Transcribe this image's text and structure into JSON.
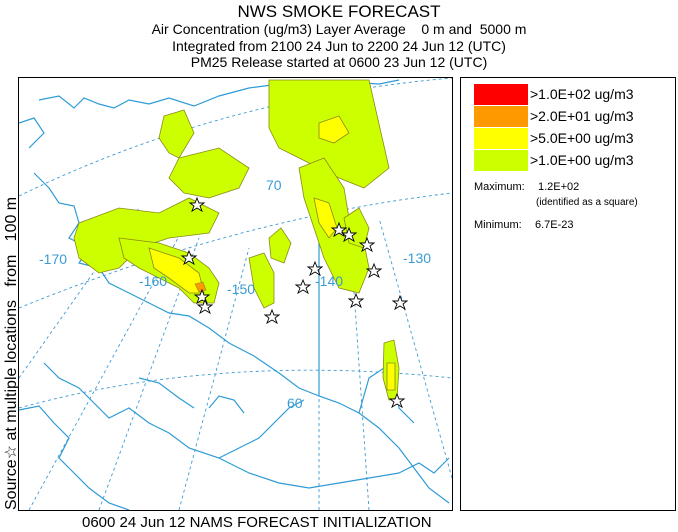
{
  "title": "NWS SMOKE FORECAST",
  "subtitle_lines": [
    "Air Concentration (ug/m3) Layer Average    0 m and  5000 m",
    "Integrated from 2100 24 Jun to 2200 24 Jun 12 (UTC)",
    "PM25 Release started at 0600 23 Jun 12 (UTC)"
  ],
  "side_label": "Source☆ at multiple locations   from   100 m",
  "footer": "0600 24 Jun 12 NAMS FORECAST INITIALIZATION",
  "legend": {
    "items": [
      {
        "label": ">1.0E+02 ug/m3",
        "color": "#ff0000"
      },
      {
        "label": ">2.0E+01 ug/m3",
        "color": "#ff9900"
      },
      {
        "label": ">5.0E+00 ug/m3",
        "color": "#ffff00"
      },
      {
        "label": ">1.0E+00 ug/m3",
        "color": "#ccff00"
      }
    ],
    "maximum_label": "Maximum:",
    "maximum_value": "1.2E+02",
    "maximum_note": "(identified as a square)",
    "minimum_label": "Minimum:",
    "minimum_value": "6.7E-23"
  },
  "map": {
    "graticule_labels": [
      "-170",
      "-160",
      "-150",
      "-140",
      "-130",
      "70",
      "60"
    ],
    "coastline_color": "#2e9bd6",
    "graticule_color": "#3c9bd2",
    "plume_outline_color": "#8a8a1a"
  }
}
